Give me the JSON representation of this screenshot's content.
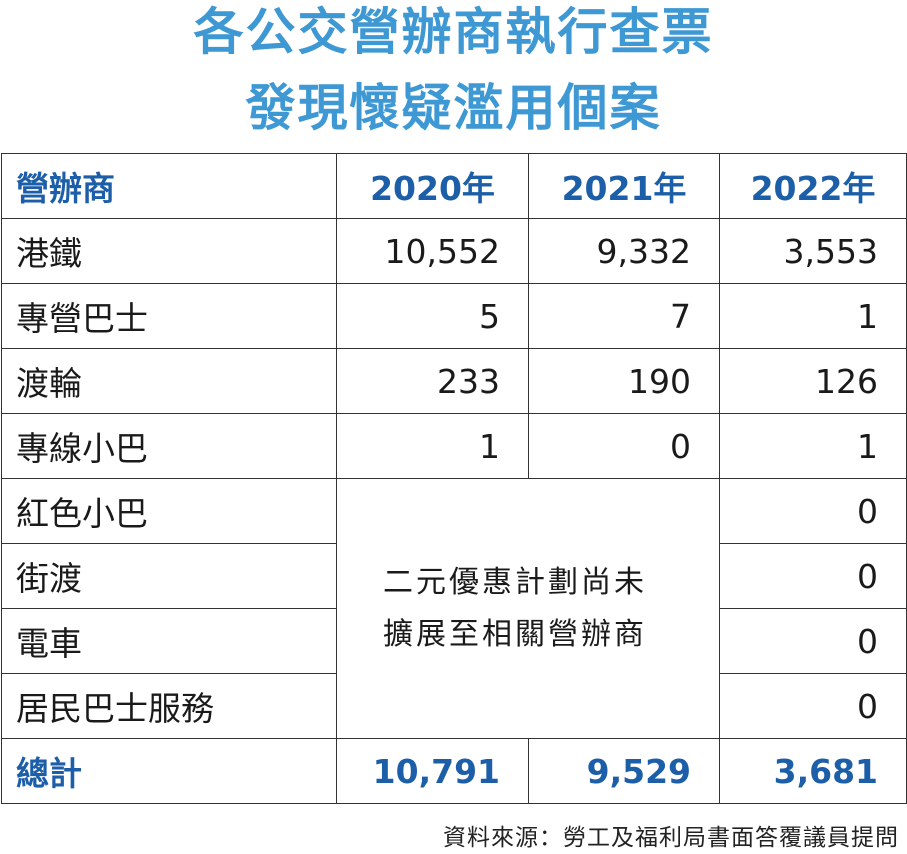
{
  "title": {
    "line1": "各公交營辦商執行查票",
    "line2": "發現懷疑濫用個案"
  },
  "table": {
    "headers": [
      "營辦商",
      "2020年",
      "2021年",
      "2022年"
    ],
    "rows": [
      {
        "operator": "港鐵",
        "y2020": "10,552",
        "y2021": "9,332",
        "y2022": "3,553"
      },
      {
        "operator": "專營巴士",
        "y2020": "5",
        "y2021": "7",
        "y2022": "1"
      },
      {
        "operator": "渡輪",
        "y2020": "233",
        "y2021": "190",
        "y2022": "126"
      },
      {
        "operator": "專線小巴",
        "y2020": "1",
        "y2021": "0",
        "y2022": "1"
      },
      {
        "operator": "紅色小巴",
        "y2022": "0"
      },
      {
        "operator": "街渡",
        "y2022": "0"
      },
      {
        "operator": "電車",
        "y2022": "0"
      },
      {
        "operator": "居民巴士服務",
        "y2022": "0"
      }
    ],
    "merged_note_line1": "二元優惠計劃尚未",
    "merged_note_line2": "擴展至相關營辦商",
    "total": {
      "label": "總計",
      "y2020": "10,791",
      "y2021": "9,529",
      "y2022": "3,681"
    }
  },
  "source": "資料來源：勞工及福利局書面答覆議員提問",
  "colors": {
    "title": "#3d98d3",
    "header_text": "#1d5ea8",
    "border": "#333333"
  }
}
